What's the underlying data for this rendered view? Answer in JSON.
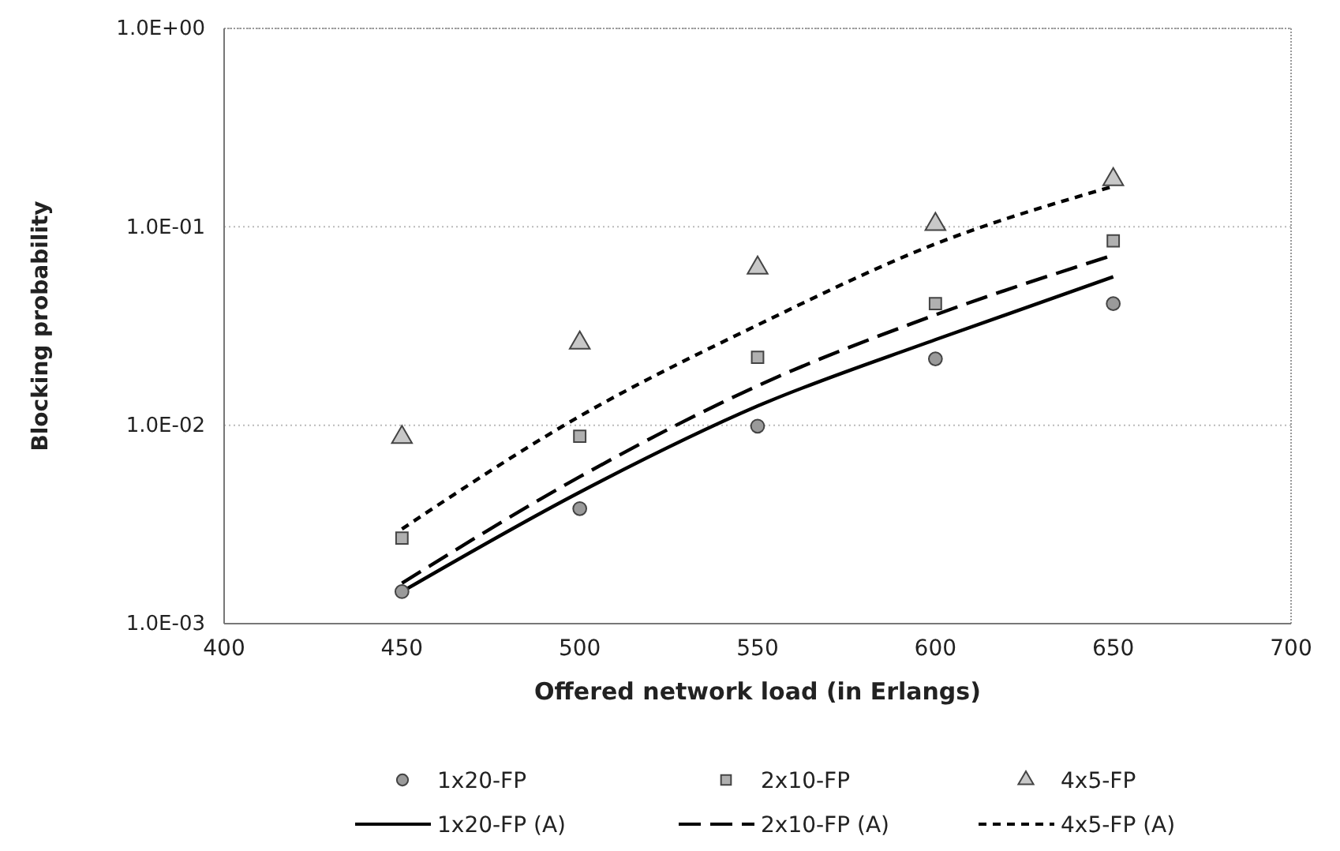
{
  "chart_data": {
    "type": "scatter",
    "xlabel": "Offered network load (in Erlangs)",
    "ylabel": "Blocking probability",
    "log": "y",
    "grid": "y",
    "legend": "bottom",
    "x": [
      450,
      500,
      550,
      600,
      650
    ],
    "xlim": [
      400,
      700
    ],
    "xticks": [
      400,
      450,
      500,
      550,
      600,
      650,
      700
    ],
    "ylim": [
      0.001,
      1
    ],
    "yticks": [
      {
        "value": 0.001,
        "label": "1.0E-03"
      },
      {
        "value": 0.01,
        "label": "1.0E-02"
      },
      {
        "value": 0.1,
        "label": "1.0E-01"
      },
      {
        "value": 1,
        "label": "1.0E+00"
      }
    ],
    "series": [
      {
        "name": "1x20-FP",
        "marker": "circle",
        "color": "#9a9a9a",
        "values": [
          0.00145,
          0.0038,
          0.0099,
          0.0216,
          0.041
        ]
      },
      {
        "name": "2x10-FP",
        "marker": "square",
        "color": "#b0b0b0",
        "values": [
          0.0027,
          0.0088,
          0.022,
          0.041,
          0.085
        ]
      },
      {
        "name": "4x5-FP",
        "marker": "triangle",
        "color": "#c8c8c8",
        "values": [
          0.0087,
          0.026,
          0.062,
          0.103,
          0.173
        ]
      },
      {
        "name": "1x20-FP (A)",
        "type": "line",
        "line_style": "solid",
        "color": "#000000",
        "values": [
          0.00145,
          0.0046,
          0.0125,
          0.027,
          0.056
        ]
      },
      {
        "name": "2x10-FP (A)",
        "type": "line",
        "line_style": "dashed",
        "color": "#000000",
        "values": [
          0.0016,
          0.0055,
          0.0158,
          0.036,
          0.072
        ]
      },
      {
        "name": "4x5-FP (A)",
        "type": "line",
        "line_style": "dotted",
        "color": "#000000",
        "values": [
          0.003,
          0.0111,
          0.032,
          0.082,
          0.16
        ]
      }
    ]
  }
}
